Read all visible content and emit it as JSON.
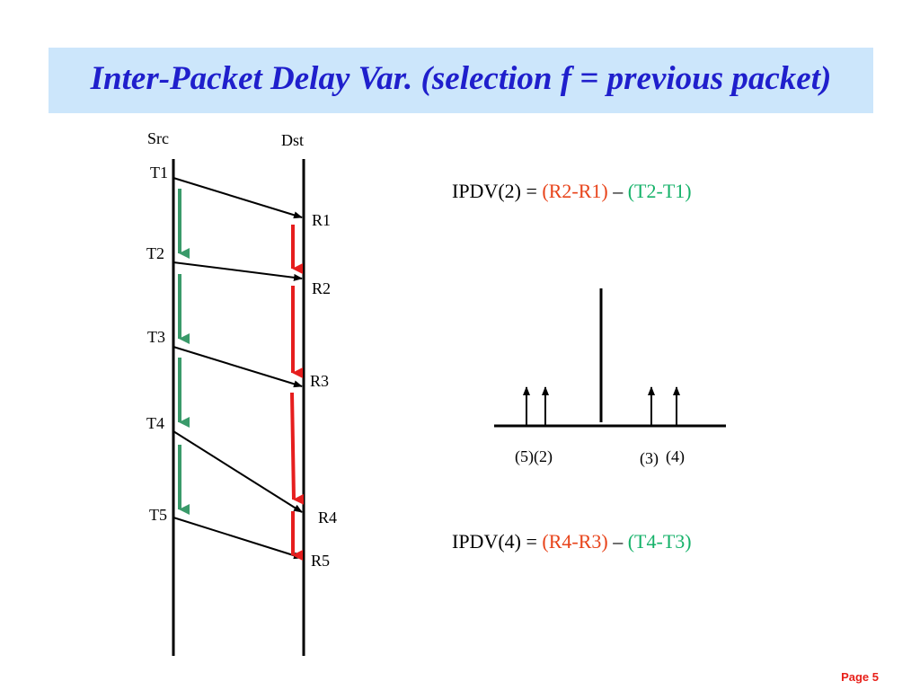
{
  "title": "Inter-Packet Delay Var. (selection f = previous packet)",
  "diagram": {
    "src_label": "Src",
    "dst_label": "Dst",
    "send_labels": [
      "T1",
      "T2",
      "T3",
      "T4",
      "T5"
    ],
    "recv_labels": [
      "R1",
      "R2",
      "R3",
      "R4",
      "R5"
    ]
  },
  "formula1": {
    "lhs": "IPDV(2) = ",
    "recv_term": "(R2-R1)",
    "dash": " – ",
    "send_term": "(T2-T1)"
  },
  "formula2": {
    "lhs": "IPDV(4) = ",
    "recv_term": "(R4-R3)",
    "dash": " – ",
    "send_term": "(T4-T3)"
  },
  "histogram": {
    "left_labels": "(5)(2)",
    "right_label_a": "(3)",
    "right_label_b": "(4)"
  },
  "footer": {
    "page": "Page 5"
  },
  "colors": {
    "title": "#1f1fcc",
    "title_bg": "#cce6fb",
    "recv_diff": "#e8431a",
    "send_diff": "#16b26a",
    "send_interval_arrow": "#3a9a6a",
    "recv_interval_arrow": "#e61e1e"
  }
}
